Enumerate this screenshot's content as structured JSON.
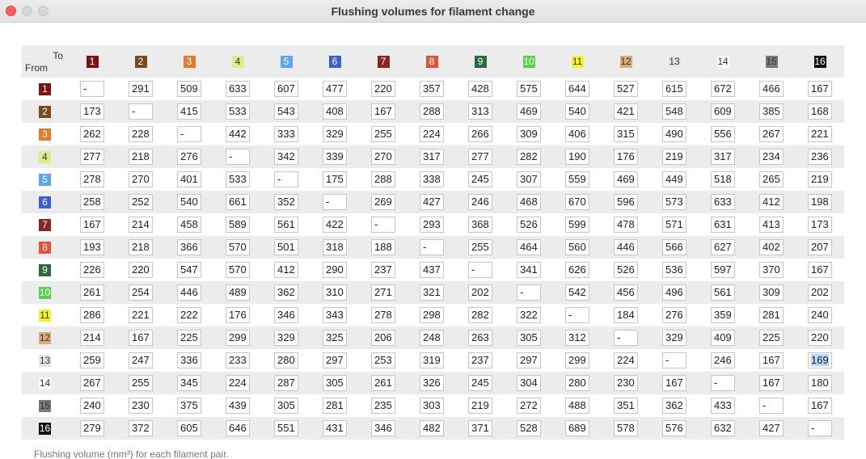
{
  "window": {
    "title": "Flushing volumes for filament change"
  },
  "header": {
    "to_label": "To",
    "from_label": "From"
  },
  "filaments": [
    {
      "label": "1",
      "bg": "#7a1414",
      "fg": "#ffffff"
    },
    {
      "label": "2",
      "bg": "#7a4a1c",
      "fg": "#ffffff"
    },
    {
      "label": "3",
      "bg": "#e07c2a",
      "fg": "#ffffff"
    },
    {
      "label": "4",
      "bg": "#dfec8c",
      "fg": "#333333"
    },
    {
      "label": "5",
      "bg": "#5aa7f0",
      "fg": "#ffffff"
    },
    {
      "label": "6",
      "bg": "#3b5fd0",
      "fg": "#ffffff"
    },
    {
      "label": "7",
      "bg": "#8c2424",
      "fg": "#ffffff"
    },
    {
      "label": "8",
      "bg": "#e0553a",
      "fg": "#ffffff"
    },
    {
      "label": "9",
      "bg": "#2a6a3e",
      "fg": "#ffffff"
    },
    {
      "label": "10",
      "bg": "#5bd04a",
      "fg": "#ffffff"
    },
    {
      "label": "11",
      "bg": "#f4f22a",
      "fg": "#333333"
    },
    {
      "label": "12",
      "bg": "#d9ad74",
      "fg": "#333333"
    },
    {
      "label": "13",
      "bg": "#e6e6e6",
      "fg": "#333333"
    },
    {
      "label": "14",
      "bg": "#ffffff",
      "fg": "#333333"
    },
    {
      "label": "15",
      "bg": "#7a7a7a",
      "fg": "#333333"
    },
    {
      "label": "16",
      "bg": "#101010",
      "fg": "#ffffff"
    }
  ],
  "matrix": [
    [
      "-",
      "291",
      "509",
      "633",
      "607",
      "477",
      "220",
      "357",
      "428",
      "575",
      "644",
      "527",
      "615",
      "672",
      "466",
      "167"
    ],
    [
      "173",
      "-",
      "415",
      "533",
      "543",
      "408",
      "167",
      "288",
      "313",
      "469",
      "540",
      "421",
      "548",
      "609",
      "385",
      "168"
    ],
    [
      "262",
      "228",
      "-",
      "442",
      "333",
      "329",
      "255",
      "224",
      "266",
      "309",
      "406",
      "315",
      "490",
      "556",
      "267",
      "221"
    ],
    [
      "277",
      "218",
      "276",
      "-",
      "342",
      "339",
      "270",
      "317",
      "277",
      "282",
      "190",
      "176",
      "219",
      "317",
      "234",
      "236"
    ],
    [
      "278",
      "270",
      "401",
      "533",
      "-",
      "175",
      "288",
      "338",
      "245",
      "307",
      "559",
      "469",
      "449",
      "518",
      "265",
      "219"
    ],
    [
      "258",
      "252",
      "540",
      "661",
      "352",
      "-",
      "269",
      "427",
      "246",
      "468",
      "670",
      "596",
      "573",
      "633",
      "412",
      "198"
    ],
    [
      "167",
      "214",
      "458",
      "589",
      "561",
      "422",
      "-",
      "293",
      "368",
      "526",
      "599",
      "478",
      "571",
      "631",
      "413",
      "173"
    ],
    [
      "193",
      "218",
      "366",
      "570",
      "501",
      "318",
      "188",
      "-",
      "255",
      "464",
      "560",
      "446",
      "566",
      "627",
      "402",
      "207"
    ],
    [
      "226",
      "220",
      "547",
      "570",
      "412",
      "290",
      "237",
      "437",
      "-",
      "341",
      "626",
      "526",
      "536",
      "597",
      "370",
      "167"
    ],
    [
      "261",
      "254",
      "446",
      "489",
      "362",
      "310",
      "271",
      "321",
      "202",
      "-",
      "542",
      "456",
      "496",
      "561",
      "309",
      "202"
    ],
    [
      "286",
      "221",
      "222",
      "176",
      "346",
      "343",
      "278",
      "298",
      "282",
      "322",
      "-",
      "184",
      "276",
      "359",
      "281",
      "240"
    ],
    [
      "214",
      "167",
      "225",
      "299",
      "329",
      "325",
      "206",
      "248",
      "263",
      "305",
      "312",
      "-",
      "329",
      "409",
      "225",
      "220"
    ],
    [
      "259",
      "247",
      "336",
      "233",
      "280",
      "297",
      "253",
      "319",
      "237",
      "297",
      "299",
      "224",
      "-",
      "246",
      "167",
      "169"
    ],
    [
      "267",
      "255",
      "345",
      "224",
      "287",
      "305",
      "261",
      "326",
      "245",
      "304",
      "280",
      "230",
      "167",
      "-",
      "167",
      "180"
    ],
    [
      "240",
      "230",
      "375",
      "439",
      "305",
      "281",
      "235",
      "303",
      "219",
      "272",
      "488",
      "351",
      "362",
      "433",
      "-",
      "167"
    ],
    [
      "279",
      "372",
      "605",
      "646",
      "551",
      "431",
      "346",
      "482",
      "371",
      "528",
      "689",
      "578",
      "576",
      "632",
      "427",
      "-"
    ]
  ],
  "selected_cell": {
    "row": 12,
    "col": 15
  },
  "footer": {
    "note": "Flushing volume (mm³) for each filament pair."
  }
}
